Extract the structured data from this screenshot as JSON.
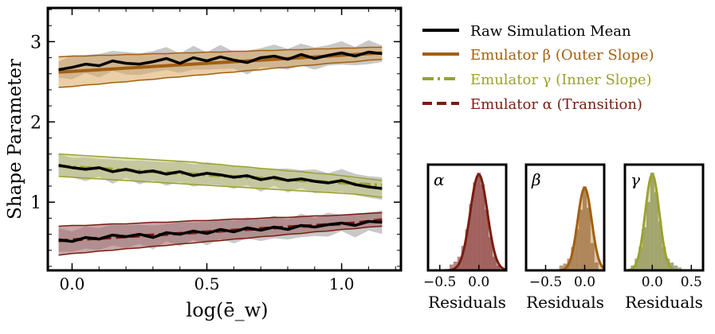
{
  "chart_data": [
    {
      "type": "line",
      "xlabel": "log(ē_w)",
      "ylabel": "Shape Parameter",
      "xlim": [
        -0.09,
        1.22
      ],
      "ylim": [
        0.15,
        3.42
      ],
      "xticks": [
        0.0,
        0.5,
        1.0
      ],
      "xtick_labels": [
        "0.0",
        "0.5",
        "1.0"
      ],
      "yticks": [
        1,
        2,
        3
      ],
      "ytick_labels": [
        "1",
        "2",
        "3"
      ],
      "legend": {
        "position": "right",
        "entries": [
          {
            "label": "Raw Simulation Mean",
            "color": "#000000",
            "style": "solid"
          },
          {
            "label": "Emulator β (Outer Slope)",
            "color": "#a35f0e",
            "style": "solid"
          },
          {
            "label": "Emulator γ (Inner Slope)",
            "color": "#9aa22e",
            "style": "dashdot"
          },
          {
            "label": "Emulator α (Transition)",
            "color": "#7a1c10",
            "style": "dashed"
          }
        ]
      },
      "x": [
        -0.05,
        0.0,
        0.05,
        0.1,
        0.15,
        0.2,
        0.25,
        0.3,
        0.35,
        0.4,
        0.45,
        0.5,
        0.55,
        0.6,
        0.65,
        0.7,
        0.75,
        0.8,
        0.85,
        0.9,
        0.95,
        1.0,
        1.05,
        1.1,
        1.15
      ],
      "series": [
        {
          "name": "Emulator β (Outer Slope)",
          "color": "#a35f0e",
          "fill": "#d9a762",
          "mean": [
            2.62,
            2.63,
            2.64,
            2.65,
            2.66,
            2.67,
            2.68,
            2.69,
            2.7,
            2.71,
            2.72,
            2.73,
            2.74,
            2.75,
            2.76,
            2.77,
            2.78,
            2.79,
            2.8,
            2.81,
            2.82,
            2.83,
            2.84,
            2.85,
            2.86
          ],
          "lower": [
            2.43,
            2.44,
            2.46,
            2.47,
            2.49,
            2.5,
            2.52,
            2.53,
            2.55,
            2.56,
            2.58,
            2.59,
            2.61,
            2.62,
            2.64,
            2.65,
            2.67,
            2.68,
            2.7,
            2.71,
            2.73,
            2.74,
            2.75,
            2.77,
            2.78
          ],
          "upper": [
            2.81,
            2.82,
            2.82,
            2.83,
            2.83,
            2.84,
            2.84,
            2.85,
            2.85,
            2.86,
            2.86,
            2.87,
            2.87,
            2.88,
            2.88,
            2.89,
            2.89,
            2.9,
            2.9,
            2.91,
            2.91,
            2.92,
            2.92,
            2.93,
            2.93
          ]
        },
        {
          "name": "Emulator γ (Inner Slope)",
          "color": "#9aa22e",
          "fill": "#c3c77d",
          "mean": [
            1.45,
            1.44,
            1.43,
            1.42,
            1.41,
            1.4,
            1.39,
            1.38,
            1.37,
            1.36,
            1.35,
            1.34,
            1.33,
            1.32,
            1.31,
            1.3,
            1.29,
            1.28,
            1.27,
            1.26,
            1.25,
            1.24,
            1.23,
            1.22,
            1.21
          ],
          "lower": [
            1.32,
            1.31,
            1.3,
            1.29,
            1.28,
            1.27,
            1.26,
            1.25,
            1.24,
            1.23,
            1.22,
            1.21,
            1.2,
            1.19,
            1.18,
            1.17,
            1.16,
            1.15,
            1.14,
            1.13,
            1.12,
            1.11,
            1.1,
            1.08,
            1.06
          ],
          "upper": [
            1.6,
            1.59,
            1.58,
            1.57,
            1.56,
            1.55,
            1.54,
            1.53,
            1.52,
            1.51,
            1.5,
            1.48,
            1.47,
            1.45,
            1.44,
            1.42,
            1.41,
            1.39,
            1.38,
            1.36,
            1.35,
            1.33,
            1.31,
            1.29,
            1.27
          ]
        },
        {
          "name": "Emulator α (Transition)",
          "color": "#7a1c10",
          "fill": "#9e5f61",
          "mean": [
            0.52,
            0.53,
            0.54,
            0.55,
            0.56,
            0.57,
            0.58,
            0.59,
            0.6,
            0.61,
            0.62,
            0.63,
            0.64,
            0.65,
            0.66,
            0.67,
            0.68,
            0.69,
            0.7,
            0.71,
            0.72,
            0.73,
            0.74,
            0.76,
            0.78
          ],
          "lower": [
            0.34,
            0.36,
            0.37,
            0.39,
            0.4,
            0.42,
            0.43,
            0.45,
            0.46,
            0.48,
            0.49,
            0.51,
            0.52,
            0.54,
            0.55,
            0.57,
            0.58,
            0.6,
            0.61,
            0.63,
            0.64,
            0.66,
            0.67,
            0.69,
            0.7
          ],
          "upper": [
            0.7,
            0.71,
            0.71,
            0.72,
            0.73,
            0.73,
            0.74,
            0.75,
            0.75,
            0.76,
            0.77,
            0.77,
            0.78,
            0.79,
            0.79,
            0.8,
            0.81,
            0.81,
            0.82,
            0.83,
            0.83,
            0.84,
            0.85,
            0.86,
            0.87
          ]
        },
        {
          "name": "Raw Simulation Mean (β)",
          "color": "#000000",
          "mean": [
            2.65,
            2.68,
            2.72,
            2.7,
            2.76,
            2.73,
            2.72,
            2.75,
            2.79,
            2.73,
            2.8,
            2.76,
            2.81,
            2.77,
            2.74,
            2.8,
            2.82,
            2.78,
            2.84,
            2.79,
            2.83,
            2.86,
            2.82,
            2.87,
            2.85
          ]
        },
        {
          "name": "Raw Simulation Mean (γ)",
          "color": "#000000",
          "mean": [
            1.46,
            1.43,
            1.41,
            1.43,
            1.38,
            1.41,
            1.37,
            1.39,
            1.35,
            1.38,
            1.33,
            1.36,
            1.34,
            1.31,
            1.33,
            1.28,
            1.31,
            1.27,
            1.29,
            1.26,
            1.24,
            1.27,
            1.22,
            1.19,
            1.17
          ]
        },
        {
          "name": "Raw Simulation Mean (α)",
          "color": "#000000",
          "mean": [
            0.53,
            0.51,
            0.56,
            0.54,
            0.59,
            0.57,
            0.6,
            0.56,
            0.62,
            0.6,
            0.64,
            0.61,
            0.66,
            0.63,
            0.68,
            0.65,
            0.69,
            0.66,
            0.71,
            0.69,
            0.72,
            0.74,
            0.71,
            0.76,
            0.75
          ]
        }
      ]
    },
    {
      "type": "histogram",
      "label": "α",
      "xlabel": "Residuals",
      "xlim": [
        -0.65,
        0.35
      ],
      "xticks": [
        -0.5,
        0.0
      ],
      "xtick_labels": [
        "−0.5",
        "0.0"
      ],
      "curve_color": "#7a1c10",
      "bar_color": "#9e5f61",
      "gauss_sigma": 0.11,
      "bins": [
        -0.35,
        -0.3,
        -0.25,
        -0.2,
        -0.15,
        -0.1,
        -0.05,
        0.0,
        0.05,
        0.1,
        0.15,
        0.2,
        0.25
      ],
      "heights": [
        0.06,
        0.09,
        0.14,
        0.25,
        0.42,
        0.68,
        0.9,
        1.0,
        0.88,
        0.62,
        0.34,
        0.14,
        0.05
      ]
    },
    {
      "type": "histogram",
      "label": "β",
      "xlabel": "Residuals",
      "xlim": [
        -0.75,
        0.25
      ],
      "xticks": [
        -0.5,
        0.0
      ],
      "xtick_labels": [
        "−0.5",
        "0.0"
      ],
      "curve_color": "#a35f0e",
      "bar_color": "#9c7a58",
      "gauss_sigma": 0.09,
      "bins": [
        -0.3,
        -0.25,
        -0.2,
        -0.15,
        -0.1,
        -0.05,
        0.0,
        0.05,
        0.1,
        0.15
      ],
      "heights": [
        0.05,
        0.07,
        0.12,
        0.24,
        0.42,
        0.62,
        0.86,
        0.64,
        0.28,
        0.08
      ]
    },
    {
      "type": "histogram",
      "label": "γ",
      "xlabel": "Residuals",
      "xlim": [
        -0.35,
        0.65
      ],
      "xticks": [
        0.0,
        0.5
      ],
      "xtick_labels": [
        "0.0",
        "0.5"
      ],
      "curve_color": "#9aa22e",
      "bar_color": "#8a8a6a",
      "gauss_sigma": 0.09,
      "bins": [
        -0.25,
        -0.2,
        -0.15,
        -0.1,
        -0.05,
        0.0,
        0.05,
        0.1,
        0.15,
        0.2,
        0.25,
        0.3,
        0.35
      ],
      "heights": [
        0.05,
        0.12,
        0.24,
        0.44,
        0.7,
        1.0,
        0.8,
        0.5,
        0.24,
        0.12,
        0.08,
        0.05,
        0.03
      ]
    }
  ]
}
